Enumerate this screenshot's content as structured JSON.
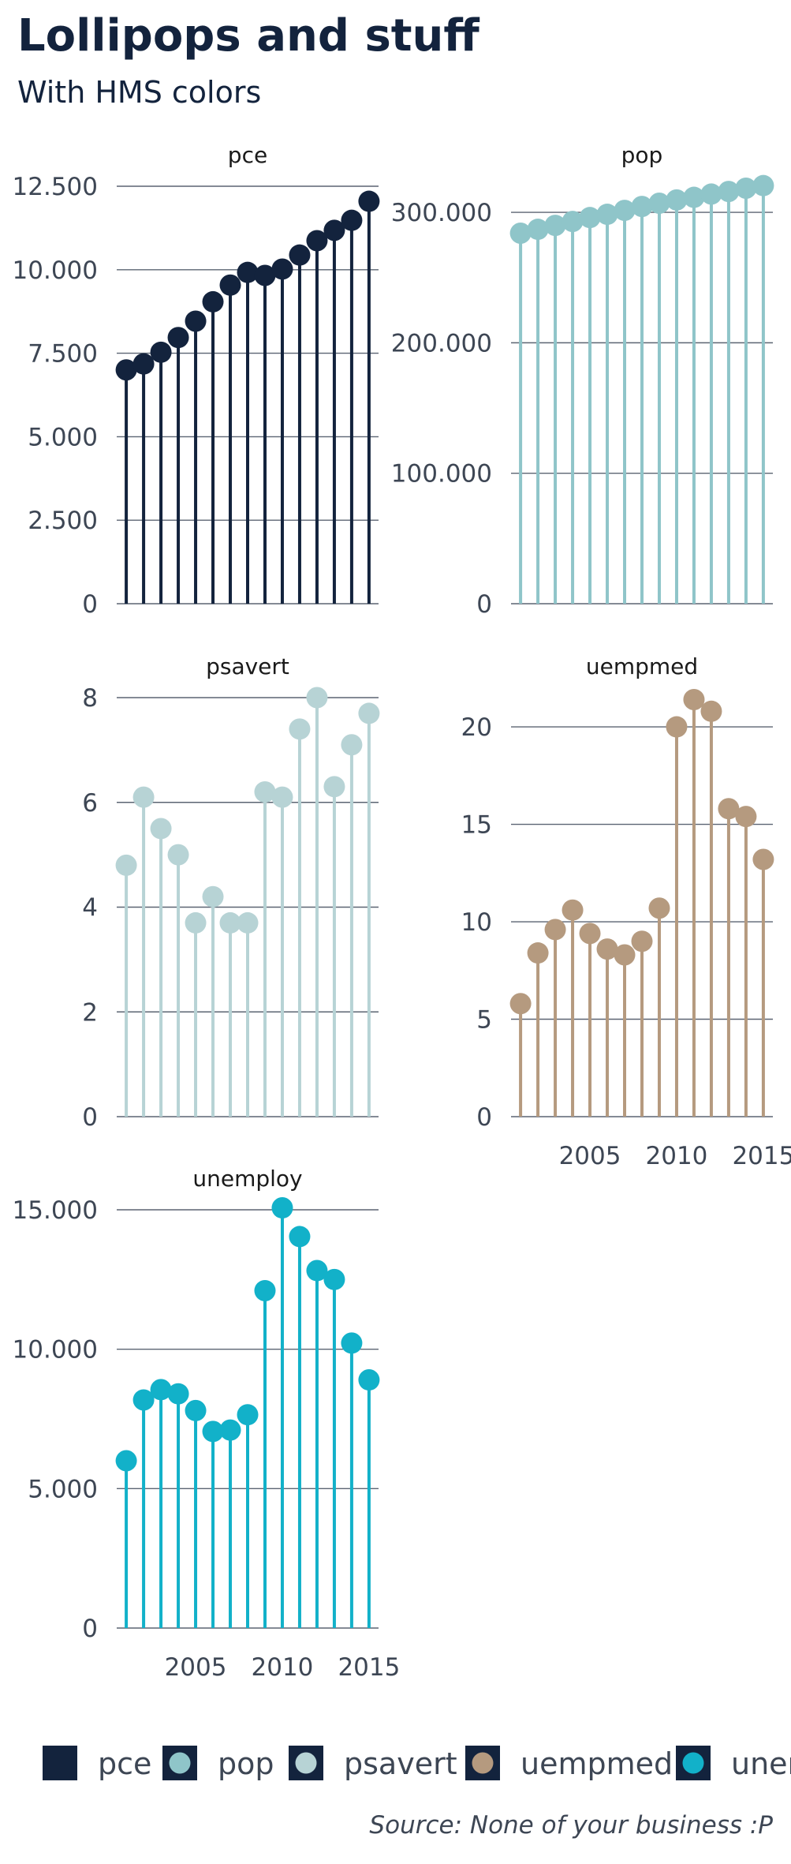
{
  "title": "Lollipops and stuff",
  "subtitle": "With HMS colors",
  "caption": "Source: None of your business :P",
  "chart_data": {
    "type": "lollipop",
    "layout": "facet-wrap, 2 columns, free y scales",
    "x": [
      2001,
      2002,
      2003,
      2004,
      2005,
      2006,
      2007,
      2008,
      2009,
      2010,
      2011,
      2012,
      2013,
      2014,
      2015
    ],
    "x_ticks": [
      2005,
      2010,
      2015
    ],
    "grid": "horizontal major gridlines",
    "legend_position": "bottom",
    "series": [
      {
        "name": "pce",
        "color": "#13233d",
        "ylim": [
          0,
          12500
        ],
        "y_ticks": [
          0,
          2500,
          5000,
          7500,
          10000,
          12500
        ],
        "y_tick_labels": [
          "0",
          "2.500",
          "5.000",
          "7.500",
          "10.000",
          "12.500"
        ],
        "values": [
          7000,
          7180,
          7530,
          7970,
          8460,
          9040,
          9540,
          9920,
          9830,
          10020,
          10440,
          10870,
          11180,
          11480,
          12050
        ]
      },
      {
        "name": "pop",
        "color": "#8fc5c9",
        "ylim": [
          0,
          320000
        ],
        "y_ticks": [
          0,
          100000,
          200000,
          300000
        ],
        "y_tick_labels": [
          "0",
          "100.000",
          "200.000",
          "300.000"
        ],
        "values": [
          284000,
          287000,
          290000,
          293000,
          296000,
          298500,
          301500,
          304500,
          307000,
          309500,
          311500,
          314000,
          316000,
          318500,
          320500
        ]
      },
      {
        "name": "psavert",
        "color": "#b7d3d5",
        "ylim": [
          0,
          8
        ],
        "y_ticks": [
          0,
          2,
          4,
          6,
          8
        ],
        "y_tick_labels": [
          "0",
          "2",
          "4",
          "6",
          "8"
        ],
        "values": [
          4.8,
          6.1,
          5.5,
          5.0,
          3.7,
          4.2,
          3.7,
          3.7,
          6.2,
          6.1,
          7.4,
          8.0,
          6.3,
          7.1,
          7.7
        ]
      },
      {
        "name": "uempmed",
        "color": "#b59a7f",
        "ylim": [
          0,
          21.5
        ],
        "y_ticks": [
          0,
          5,
          10,
          15,
          20
        ],
        "y_tick_labels": [
          "0",
          "5",
          "10",
          "15",
          "20"
        ],
        "values": [
          5.8,
          8.4,
          9.6,
          10.6,
          9.4,
          8.6,
          8.3,
          9.0,
          10.7,
          20.0,
          21.4,
          20.8,
          15.8,
          15.4,
          13.2
        ]
      },
      {
        "name": "unemploy",
        "color": "#12b1c9",
        "ylim": [
          0,
          15000
        ],
        "y_ticks": [
          0,
          5000,
          10000,
          15000
        ],
        "y_tick_labels": [
          "0",
          "5.000",
          "10.000",
          "15.000"
        ],
        "values": [
          6000,
          8180,
          8550,
          8400,
          7800,
          7050,
          7100,
          7650,
          12100,
          15070,
          14040,
          12820,
          12500,
          10220,
          8900
        ]
      }
    ],
    "legend": [
      "pce",
      "pop",
      "psavert",
      "uempmed",
      "unemploy"
    ]
  }
}
